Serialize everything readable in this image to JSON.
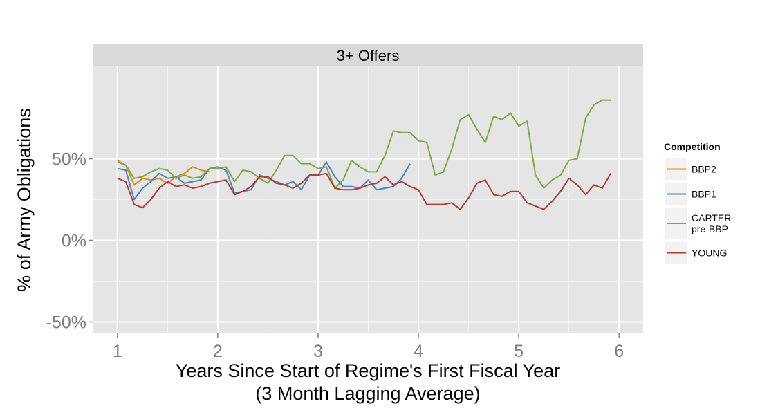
{
  "chart_data": {
    "type": "line",
    "panel_title": "3+ Offers",
    "xlabel_line1": "Years Since Start of Regime's First Fiscal Year",
    "xlabel_line2": "(3 Month Lagging Average)",
    "ylabel": "% of Army Obligations",
    "xlim": [
      0.76,
      6.24
    ],
    "ylim": [
      -0.57,
      1.07
    ],
    "x_ticks": [
      1,
      2,
      3,
      4,
      5,
      6
    ],
    "x_tick_labels": [
      "1",
      "2",
      "3",
      "4",
      "5",
      "6"
    ],
    "y_ticks": [
      -0.5,
      0,
      0.5
    ],
    "y_tick_labels": [
      "-50%",
      "0%",
      "50%"
    ],
    "grid": true,
    "legend_title": "Competition",
    "legend_position": "right",
    "series": [
      {
        "name": "BBP2",
        "color": "#e08b1b",
        "x": [
          1.0,
          1.083,
          1.167,
          1.25,
          1.333,
          1.417,
          1.5,
          1.583,
          1.667,
          1.75,
          1.833,
          1.917
        ],
        "y": [
          0.49,
          0.46,
          0.34,
          0.38,
          0.37,
          0.38,
          0.35,
          0.39,
          0.41,
          0.45,
          0.43,
          0.42
        ]
      },
      {
        "name": "BBP1",
        "color": "#4d80c0",
        "x": [
          1.0,
          1.083,
          1.167,
          1.25,
          1.333,
          1.417,
          1.5,
          1.583,
          1.667,
          1.75,
          1.833,
          1.917,
          2.0,
          2.083,
          2.167,
          2.25,
          2.333,
          2.417,
          2.5,
          2.583,
          2.667,
          2.75,
          2.833,
          2.917,
          3.0,
          3.083,
          3.167,
          3.25,
          3.333,
          3.417,
          3.5,
          3.583,
          3.667,
          3.75,
          3.833,
          3.917
        ],
        "y": [
          0.44,
          0.43,
          0.25,
          0.32,
          0.36,
          0.41,
          0.38,
          0.39,
          0.35,
          0.36,
          0.37,
          0.44,
          0.45,
          0.43,
          0.29,
          0.3,
          0.31,
          0.4,
          0.38,
          0.36,
          0.34,
          0.36,
          0.31,
          0.4,
          0.4,
          0.48,
          0.39,
          0.33,
          0.33,
          0.32,
          0.37,
          0.31,
          0.32,
          0.33,
          0.38,
          0.47
        ]
      },
      {
        "name": "CARTER\npre-BBP",
        "color": "#7ea845",
        "x": [
          1.0,
          1.083,
          1.167,
          1.25,
          1.333,
          1.417,
          1.5,
          1.583,
          1.667,
          1.75,
          1.833,
          1.917,
          2.0,
          2.083,
          2.167,
          2.25,
          2.333,
          2.417,
          2.5,
          2.583,
          2.667,
          2.75,
          2.833,
          2.917,
          3.0,
          3.083,
          3.167,
          3.25,
          3.333,
          3.417,
          3.5,
          3.583,
          3.667,
          3.75,
          3.833,
          3.917,
          4.0,
          4.083,
          4.167,
          4.25,
          4.333,
          4.417,
          4.5,
          4.583,
          4.667,
          4.75,
          4.833,
          4.917,
          5.0,
          5.083,
          5.167,
          5.25,
          5.333,
          5.417,
          5.5,
          5.583,
          5.667,
          5.75,
          5.833,
          5.917
        ],
        "y": [
          0.48,
          0.46,
          0.38,
          0.39,
          0.42,
          0.44,
          0.43,
          0.38,
          0.4,
          0.38,
          0.39,
          0.44,
          0.44,
          0.45,
          0.36,
          0.43,
          0.42,
          0.38,
          0.35,
          0.43,
          0.52,
          0.52,
          0.47,
          0.47,
          0.44,
          0.45,
          0.32,
          0.37,
          0.49,
          0.45,
          0.42,
          0.42,
          0.52,
          0.67,
          0.66,
          0.66,
          0.61,
          0.6,
          0.4,
          0.42,
          0.56,
          0.74,
          0.77,
          0.68,
          0.6,
          0.76,
          0.74,
          0.78,
          0.7,
          0.73,
          0.4,
          0.32,
          0.37,
          0.4,
          0.49,
          0.5,
          0.75,
          0.83,
          0.86,
          0.86
        ]
      },
      {
        "name": "YOUNG",
        "color": "#b03c36",
        "x": [
          1.0,
          1.083,
          1.167,
          1.25,
          1.333,
          1.417,
          1.5,
          1.583,
          1.667,
          1.75,
          1.833,
          1.917,
          2.0,
          2.083,
          2.167,
          2.25,
          2.333,
          2.417,
          2.5,
          2.583,
          2.667,
          2.75,
          2.833,
          2.917,
          3.0,
          3.083,
          3.167,
          3.25,
          3.333,
          3.417,
          3.5,
          3.583,
          3.667,
          3.75,
          3.833,
          3.917,
          4.0,
          4.083,
          4.167,
          4.25,
          4.333,
          4.417,
          4.5,
          4.583,
          4.667,
          4.75,
          4.833,
          4.917,
          5.0,
          5.083,
          5.167,
          5.25,
          5.333,
          5.417,
          5.5,
          5.583,
          5.667,
          5.75,
          5.833,
          5.917
        ],
        "y": [
          0.38,
          0.36,
          0.22,
          0.2,
          0.25,
          0.32,
          0.36,
          0.33,
          0.34,
          0.32,
          0.33,
          0.35,
          0.36,
          0.37,
          0.28,
          0.3,
          0.33,
          0.39,
          0.39,
          0.35,
          0.34,
          0.32,
          0.35,
          0.4,
          0.4,
          0.41,
          0.32,
          0.31,
          0.31,
          0.32,
          0.34,
          0.35,
          0.39,
          0.34,
          0.36,
          0.33,
          0.31,
          0.22,
          0.22,
          0.22,
          0.23,
          0.19,
          0.26,
          0.35,
          0.37,
          0.28,
          0.27,
          0.3,
          0.3,
          0.23,
          0.21,
          0.19,
          0.24,
          0.3,
          0.38,
          0.34,
          0.28,
          0.34,
          0.32,
          0.41
        ]
      }
    ]
  }
}
